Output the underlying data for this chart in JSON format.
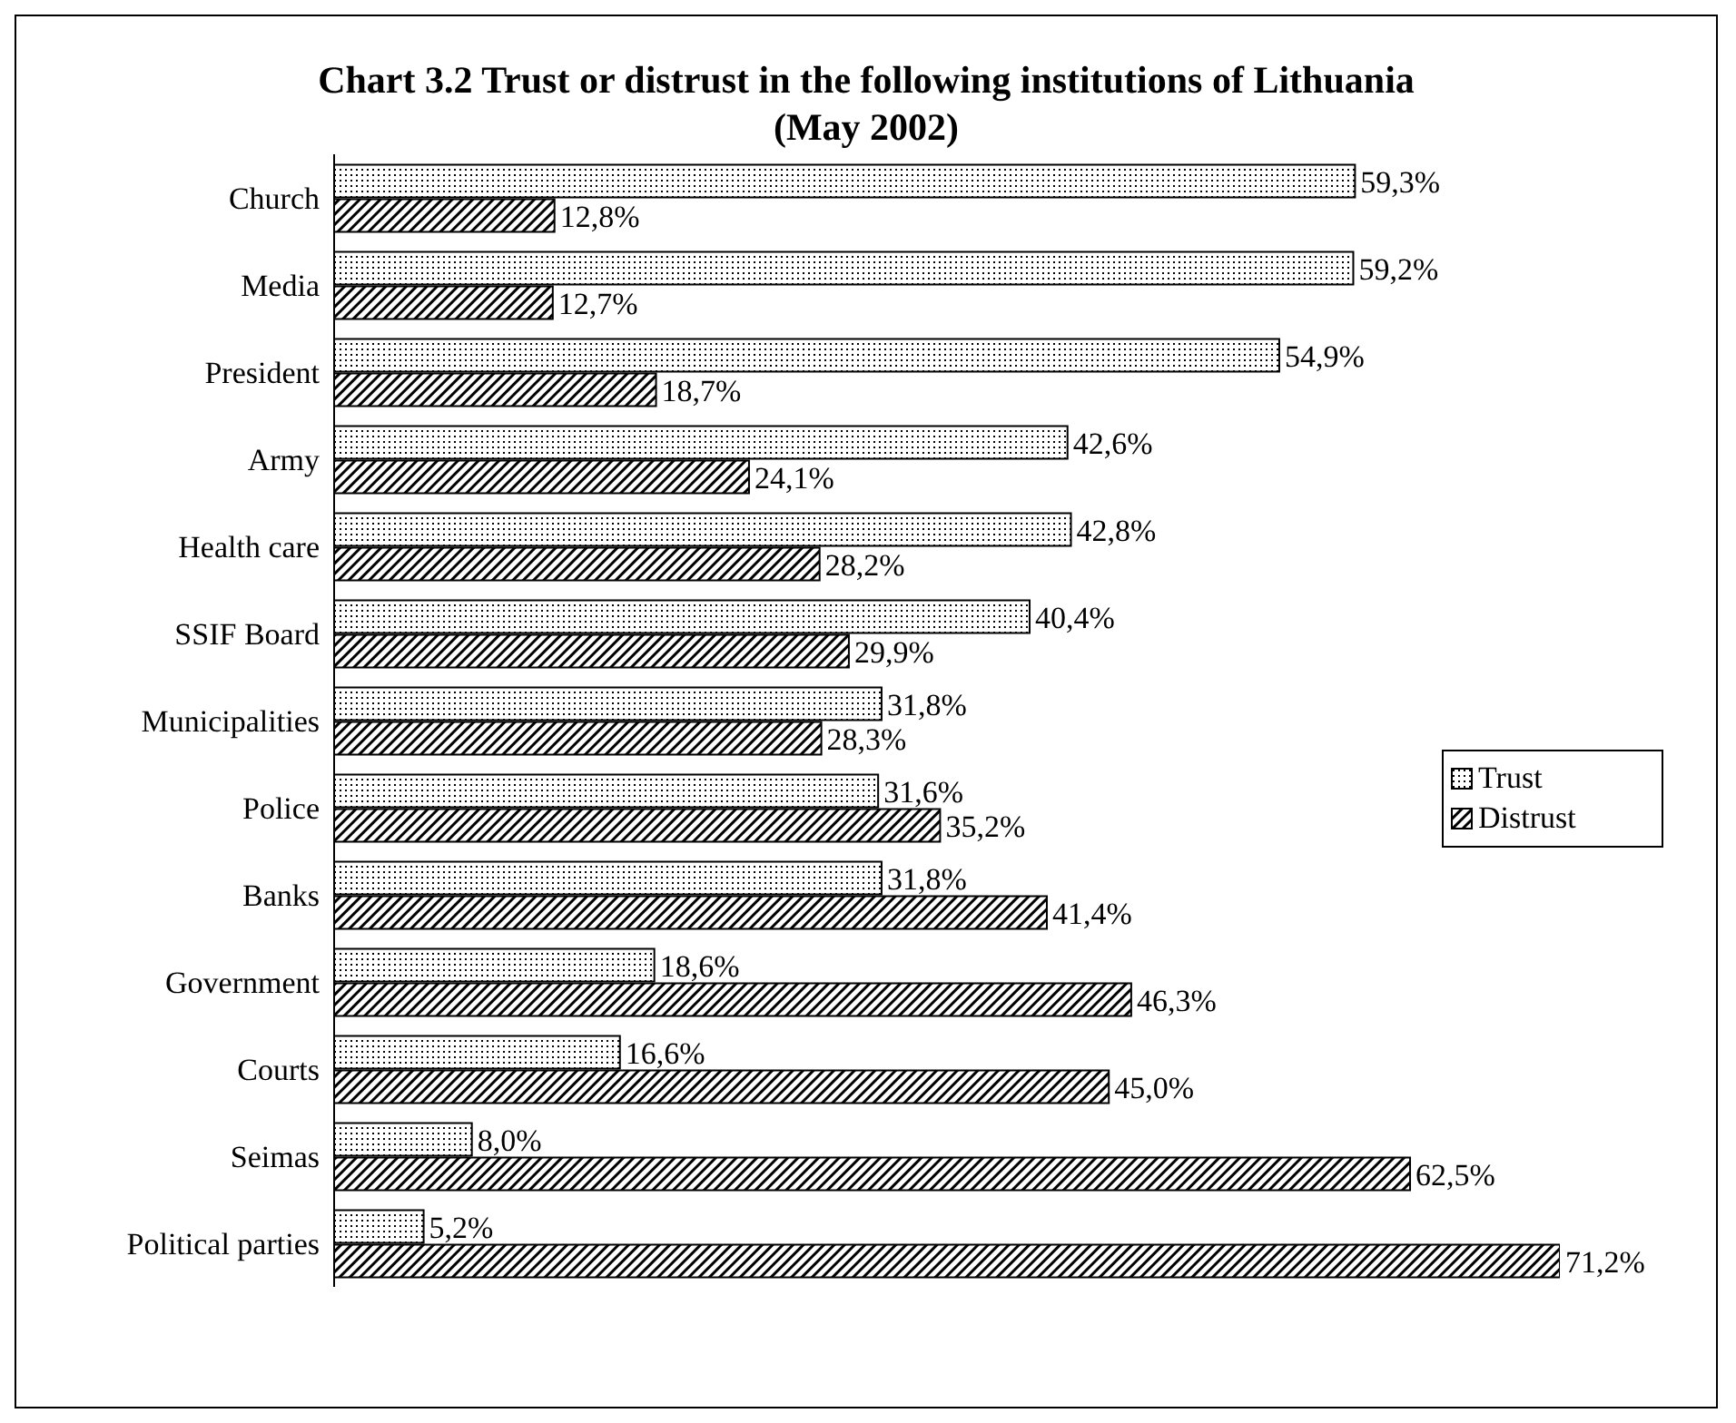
{
  "chart_data": {
    "type": "bar",
    "orientation": "horizontal",
    "title": "Chart 3.2 Trust or distrust in the following institutions of Lithuania\n(May 2002)",
    "categories": [
      "Church",
      "Media",
      "President",
      "Army",
      "Health care",
      "SSIF Board",
      "Municipalities",
      "Police",
      "Banks",
      "Government",
      "Courts",
      "Seimas",
      "Political parties"
    ],
    "series": [
      {
        "name": "Trust",
        "color": "#000000",
        "values": [
          59.3,
          59.2,
          54.9,
          42.6,
          42.8,
          40.4,
          31.8,
          31.6,
          31.8,
          18.6,
          16.6,
          8.0,
          5.2
        ],
        "value_labels": [
          "59,3%",
          "59,2%",
          "54,9%",
          "42,6%",
          "42,8%",
          "40,4%",
          "31,8%",
          "31,6%",
          "31,8%",
          "18,6%",
          "16,6%",
          "8,0%",
          "5,2%"
        ]
      },
      {
        "name": "Distrust",
        "color": "#000000",
        "values": [
          12.8,
          12.7,
          18.7,
          24.1,
          28.2,
          29.9,
          28.3,
          35.2,
          41.4,
          46.3,
          45.0,
          62.5,
          71.2
        ],
        "value_labels": [
          "12,8%",
          "12,7%",
          "18,7%",
          "24,1%",
          "28,2%",
          "29,9%",
          "28,3%",
          "35,2%",
          "41,4%",
          "46,3%",
          "45,0%",
          "62,5%",
          "71,2%"
        ]
      }
    ],
    "tick_labels": "y",
    "legend": "right",
    "grid": false
  }
}
